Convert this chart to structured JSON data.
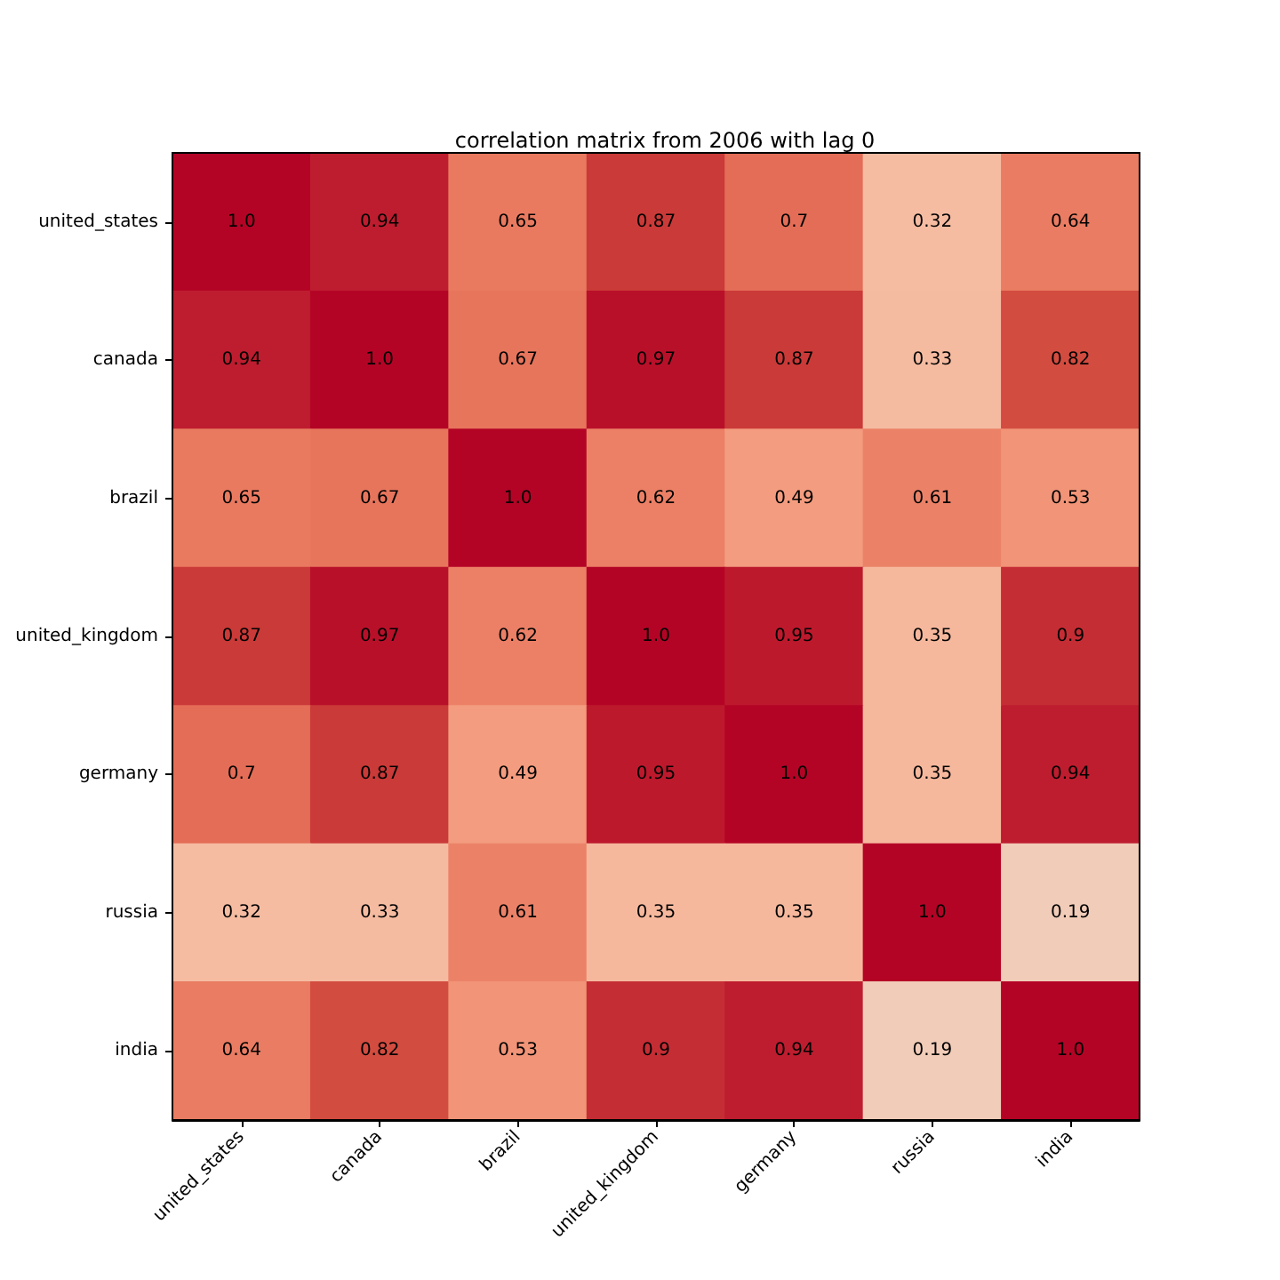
{
  "chart_data": {
    "type": "heatmap",
    "title": "correlation matrix from 2006 with lag 0",
    "categories": [
      "united_states",
      "canada",
      "brazil",
      "united_kingdom",
      "germany",
      "russia",
      "india"
    ],
    "y_categories": [
      "united_states",
      "canada",
      "brazil",
      "united_kingdom",
      "germany",
      "russia",
      "india"
    ],
    "cells": [
      [
        1.0,
        0.94,
        0.65,
        0.87,
        0.7,
        0.32,
        0.64
      ],
      [
        0.94,
        1.0,
        0.67,
        0.97,
        0.87,
        0.33,
        0.82
      ],
      [
        0.65,
        0.67,
        1.0,
        0.62,
        0.49,
        0.61,
        0.53
      ],
      [
        0.87,
        0.97,
        0.62,
        1.0,
        0.95,
        0.35,
        0.9
      ],
      [
        0.7,
        0.87,
        0.49,
        0.95,
        1.0,
        0.35,
        0.94
      ],
      [
        0.32,
        0.33,
        0.61,
        0.35,
        0.35,
        1.0,
        0.19
      ],
      [
        0.64,
        0.82,
        0.53,
        0.9,
        0.94,
        0.19,
        1.0
      ]
    ],
    "cell_labels": [
      [
        "1.0",
        "0.94",
        "0.65",
        "0.87",
        "0.7",
        "0.32",
        "0.64"
      ],
      [
        "0.94",
        "1.0",
        "0.67",
        "0.97",
        "0.87",
        "0.33",
        "0.82"
      ],
      [
        "0.65",
        "0.67",
        "1.0",
        "0.62",
        "0.49",
        "0.61",
        "0.53"
      ],
      [
        "0.87",
        "0.97",
        "0.62",
        "1.0",
        "0.95",
        "0.35",
        "0.9"
      ],
      [
        "0.7",
        "0.87",
        "0.49",
        "0.95",
        "1.0",
        "0.35",
        "0.94"
      ],
      [
        "0.32",
        "0.33",
        "0.61",
        "0.35",
        "0.35",
        "1.0",
        "0.19"
      ],
      [
        "0.64",
        "0.82",
        "0.53",
        "0.9",
        "0.94",
        "0.19",
        "1.0"
      ]
    ]
  }
}
